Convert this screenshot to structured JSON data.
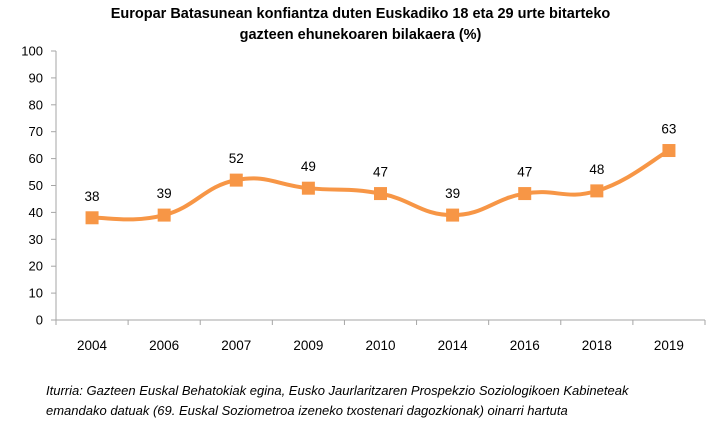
{
  "title_lines": [
    "Europar Batasunean konfiantza duten Euskadiko 18 eta 29 urte bitarteko",
    "gazteen ehunekoaren bilakaera (%)"
  ],
  "source_lines": [
    "Iturria: Gazteen Euskal Behatokiak egina, Eusko Jaurlaritzaren Prospekzio Soziologikoen Kabineteak",
    "emandako datuak (69. Euskal Soziometroa izeneko txostenari dagozkionak) oinarri hartuta"
  ],
  "colors": {
    "series": "#f79646",
    "axis": "#a6a6a6",
    "text": "#000000"
  },
  "chart_data": {
    "type": "line",
    "smooth": true,
    "marker": "square",
    "categories": [
      "2004",
      "2006",
      "2007",
      "2009",
      "2010",
      "2014",
      "2016",
      "2018",
      "2019"
    ],
    "values": [
      38,
      39,
      52,
      49,
      47,
      39,
      47,
      48,
      63
    ],
    "data_labels": true,
    "ylim": [
      0,
      100
    ],
    "yticks": [
      0,
      10,
      20,
      30,
      40,
      50,
      60,
      70,
      80,
      90,
      100
    ],
    "grid": false,
    "legend": "none"
  }
}
